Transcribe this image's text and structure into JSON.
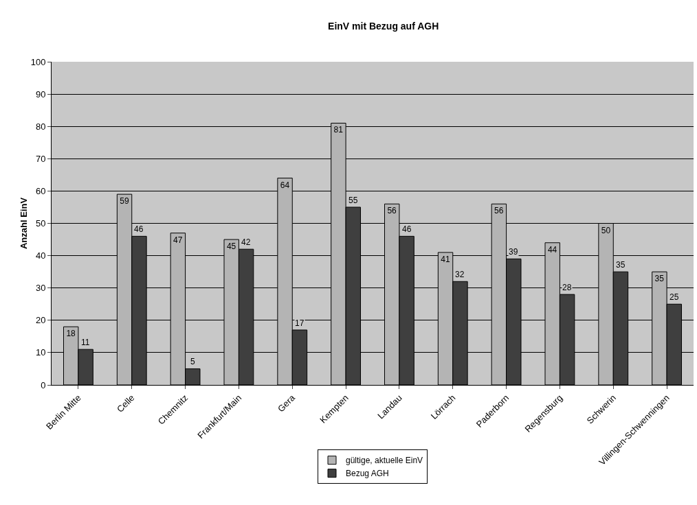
{
  "chart_data": {
    "type": "bar",
    "title": "EinV mit Bezug auf AGH",
    "ylabel": "Anzahl EinV",
    "categories": [
      "Berlin Mitte",
      "Celle",
      "Chemnitz",
      "Frankfurt/Main",
      "Gera",
      "Kempten",
      "Landau",
      "Lörrach",
      "Paderborn",
      "Regensburg",
      "Schwerin",
      "Villingen-Schwenningen"
    ],
    "series": [
      {
        "name": "gültige, aktuelle EinV",
        "color": "#b4b4b4",
        "values": [
          18,
          59,
          47,
          45,
          64,
          81,
          56,
          41,
          56,
          44,
          50,
          35
        ]
      },
      {
        "name": "Bezug AGH",
        "color": "#3f3f3f",
        "values": [
          11,
          46,
          5,
          42,
          17,
          55,
          46,
          32,
          39,
          28,
          35,
          25
        ]
      }
    ],
    "ylim": [
      0,
      100
    ],
    "yticks": [
      0,
      10,
      20,
      30,
      40,
      50,
      60,
      70,
      80,
      90,
      100
    ],
    "grid": "y",
    "legend": "bottom",
    "data_labels": true
  }
}
